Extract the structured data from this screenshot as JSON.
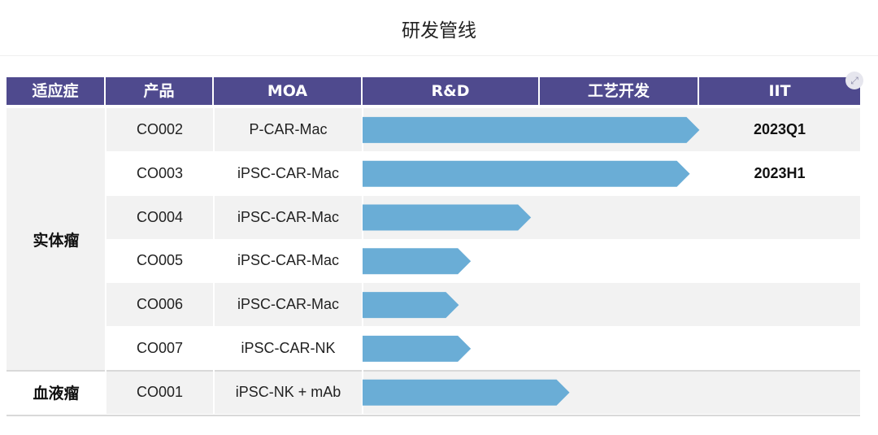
{
  "page_title": "研发管线",
  "chart_data": {
    "type": "bar",
    "orientation": "horizontal",
    "stages": [
      "R&D",
      "工艺开发",
      "IIT"
    ],
    "columns": {
      "indication": "适应症",
      "product": "产品",
      "moa": "MOA",
      "rd": "R&D",
      "process": "工艺开发",
      "iit": "IIT"
    },
    "groups": [
      {
        "name": "实体瘤",
        "row_count": 6
      },
      {
        "name": "血液瘤",
        "row_count": 1
      }
    ],
    "rows": [
      {
        "product": "CO002",
        "moa": "P-CAR-Mac",
        "progress": 1.4,
        "iit_label": "2023Q1",
        "group": "实体瘤"
      },
      {
        "product": "CO003",
        "moa": "iPSC-CAR-Mac",
        "progress": 1.36,
        "iit_label": "2023H1",
        "group": "实体瘤"
      },
      {
        "product": "CO004",
        "moa": "iPSC-CAR-Mac",
        "progress": 0.7,
        "iit_label": "",
        "group": "实体瘤"
      },
      {
        "product": "CO005",
        "moa": "iPSC-CAR-Mac",
        "progress": 0.45,
        "iit_label": "",
        "group": "实体瘤"
      },
      {
        "product": "CO006",
        "moa": "iPSC-CAR-Mac",
        "progress": 0.4,
        "iit_label": "",
        "group": "实体瘤"
      },
      {
        "product": "CO007",
        "moa": "iPSC-CAR-NK",
        "progress": 0.45,
        "iit_label": "",
        "group": "实体瘤"
      },
      {
        "product": "CO001",
        "moa": "iPSC-NK + mAb",
        "progress": 0.86,
        "iit_label": "",
        "group": "血液瘤"
      }
    ],
    "bar_color": "#6aadd6",
    "header_color": "#4f4a8e",
    "row_shade_color": "#f2f2f2"
  },
  "icons": {
    "corner": "expand-icon"
  }
}
